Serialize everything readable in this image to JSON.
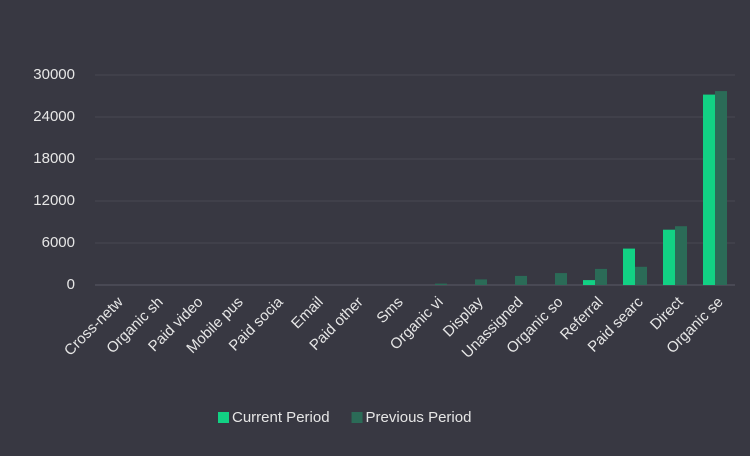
{
  "chart_data": {
    "type": "bar",
    "categories": [
      "Cross-netw",
      "Organic sh",
      "Paid video",
      "Mobile pus",
      "Paid socia",
      "Email",
      "Paid other",
      "Sms",
      "Organic vi",
      "Display",
      "Unassigned",
      "Organic so",
      "Referral",
      "Paid searc",
      "Direct",
      "Organic se"
    ],
    "series": [
      {
        "name": "Current Period",
        "color": "#12d184",
        "values": [
          0,
          0,
          0,
          0,
          0,
          0,
          0,
          0,
          0,
          0,
          0,
          0,
          700,
          5200,
          7900,
          27200
        ]
      },
      {
        "name": "Previous Period",
        "color": "#2b6b57",
        "values": [
          0,
          0,
          0,
          0,
          0,
          0,
          0,
          0,
          200,
          800,
          1300,
          1700,
          2300,
          2600,
          8400,
          27700
        ]
      }
    ],
    "ylim": [
      0,
      30000
    ],
    "yticks": [
      0,
      6000,
      12000,
      18000,
      24000,
      30000
    ],
    "grid": true
  }
}
